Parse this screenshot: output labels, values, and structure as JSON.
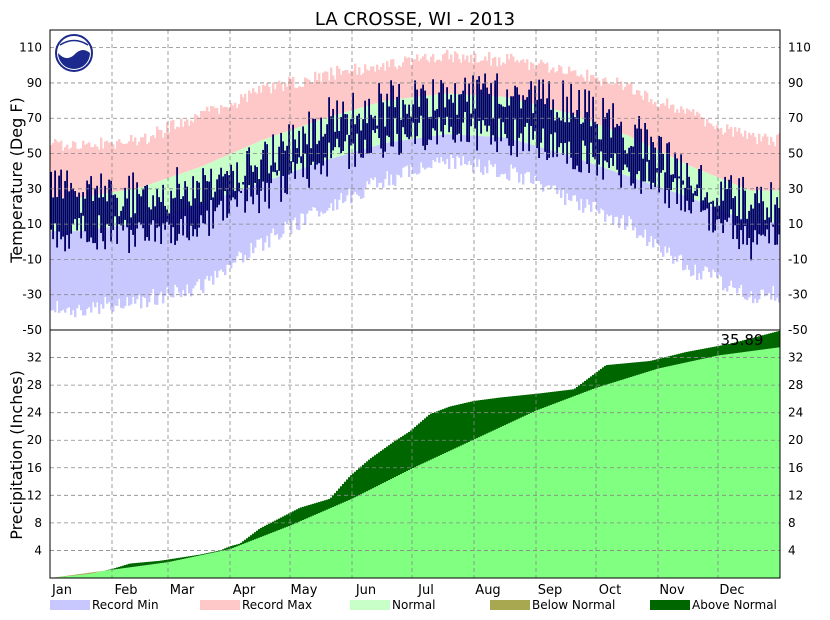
{
  "title": "LA CROSSE, WI - 2013",
  "colors": {
    "record_min": "#c8c8ff",
    "record_max": "#ffc8c8",
    "normal": "#c8ffc8",
    "observed": "#000066",
    "precip_normal": "#80ff80",
    "below_normal": "#a8a850",
    "above_normal": "#006600"
  },
  "legend": [
    {
      "label": "Record Min",
      "color_key": "record_min"
    },
    {
      "label": "Record Max",
      "color_key": "record_max"
    },
    {
      "label": "Normal",
      "color_key": "normal"
    },
    {
      "label": "Below Normal",
      "color_key": "below_normal"
    },
    {
      "label": "Above Normal",
      "color_key": "above_normal"
    }
  ],
  "chart_data": [
    {
      "type": "area",
      "ylabel": "Temperature (Deg F)",
      "ylim": [
        -50,
        120
      ],
      "yticks": [
        110,
        90,
        70,
        50,
        30,
        10,
        -10,
        -30,
        -50
      ],
      "months": [
        "Jan",
        "Feb",
        "Mar",
        "Apr",
        "May",
        "Jun",
        "Jul",
        "Aug",
        "Sep",
        "Oct",
        "Nov",
        "Dec"
      ],
      "grid": true,
      "series": [
        {
          "name": "Record Max",
          "monthly_approx": [
            55,
            58,
            72,
            86,
            95,
            100,
            105,
            103,
            97,
            88,
            72,
            58
          ]
        },
        {
          "name": "Normal",
          "monthly_high_approx": [
            25,
            31,
            43,
            58,
            70,
            80,
            84,
            82,
            73,
            60,
            43,
            29
          ],
          "monthly_low_approx": [
            6,
            11,
            22,
            34,
            46,
            56,
            61,
            59,
            49,
            37,
            25,
            11
          ]
        },
        {
          "name": "Record Min",
          "monthly_approx": [
            -38,
            -33,
            -25,
            0,
            20,
            35,
            45,
            40,
            25,
            10,
            -15,
            -30
          ]
        },
        {
          "name": "Observed",
          "monthly_high_approx": [
            28,
            26,
            33,
            45,
            70,
            78,
            85,
            82,
            80,
            62,
            40,
            22
          ],
          "monthly_low_approx": [
            5,
            3,
            12,
            28,
            45,
            58,
            64,
            60,
            52,
            40,
            24,
            0
          ]
        }
      ]
    },
    {
      "type": "area",
      "ylabel": "Precipitation (Inches)",
      "ylim": [
        0,
        36
      ],
      "yticks": [
        32,
        28,
        24,
        20,
        16,
        12,
        8,
        4
      ],
      "annotation": "35.89",
      "grid": true,
      "cumulative_normal_points": [
        [
          0,
          0
        ],
        [
          31,
          1.2
        ],
        [
          59,
          2.3
        ],
        [
          90,
          4.2
        ],
        [
          120,
          7.6
        ],
        [
          151,
          11.5
        ],
        [
          181,
          15.9
        ],
        [
          212,
          20.1
        ],
        [
          243,
          24.3
        ],
        [
          273,
          27.6
        ],
        [
          304,
          30.4
        ],
        [
          334,
          32.3
        ],
        [
          365,
          33.5
        ]
      ],
      "cumulative_observed_points": [
        [
          0,
          0
        ],
        [
          20,
          0.6
        ],
        [
          31,
          1.3
        ],
        [
          40,
          2.1
        ],
        [
          55,
          2.5
        ],
        [
          75,
          3.4
        ],
        [
          85,
          4.0
        ],
        [
          90,
          4.6
        ],
        [
          95,
          5.0
        ],
        [
          105,
          7.2
        ],
        [
          113,
          8.4
        ],
        [
          125,
          10.2
        ],
        [
          140,
          11.5
        ],
        [
          150,
          14.8
        ],
        [
          160,
          17.3
        ],
        [
          172,
          19.8
        ],
        [
          180,
          21.3
        ],
        [
          190,
          23.8
        ],
        [
          200,
          24.9
        ],
        [
          212,
          25.7
        ],
        [
          225,
          26.2
        ],
        [
          245,
          26.8
        ],
        [
          262,
          27.4
        ],
        [
          278,
          30.9
        ],
        [
          300,
          31.5
        ],
        [
          318,
          32.8
        ],
        [
          340,
          34.0
        ],
        [
          365,
          35.89
        ]
      ]
    }
  ]
}
